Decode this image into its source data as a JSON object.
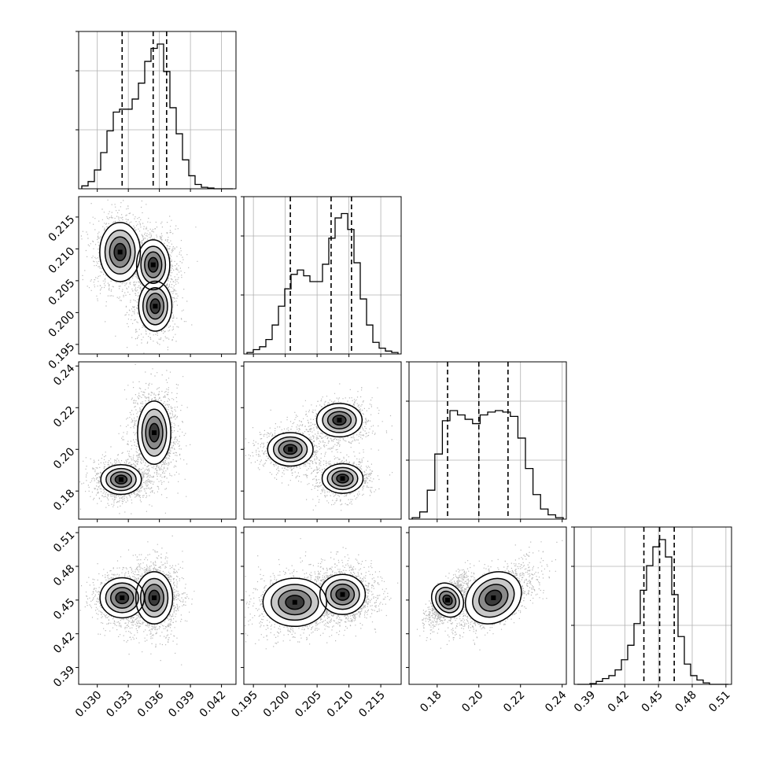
{
  "chart_data": {
    "type": "corner",
    "parameters": [
      {
        "range": [
          0.0282,
          0.0434
        ],
        "ticks": [
          0.03,
          0.033,
          0.036,
          0.039,
          0.042
        ],
        "tick_labels": [
          "0.030",
          "0.033",
          "0.036",
          "0.039",
          "0.042"
        ],
        "quantiles": [
          0.0324,
          0.0354,
          0.0367
        ]
      },
      {
        "range": [
          0.1935,
          0.2182
        ],
        "ticks": [
          0.195,
          0.2,
          0.205,
          0.21,
          0.215
        ],
        "tick_labels": [
          "0.195",
          "0.200",
          "0.205",
          "0.210",
          "0.215"
        ],
        "quantiles": [
          0.2008,
          0.2072,
          0.2104
        ]
      },
      {
        "range": [
          0.1665,
          0.242
        ],
        "ticks": [
          0.18,
          0.2,
          0.22,
          0.24
        ],
        "tick_labels": [
          "0.18",
          "0.20",
          "0.22",
          "0.24"
        ],
        "quantiles": [
          0.185,
          0.2,
          0.214
        ]
      },
      {
        "range": [
          0.375,
          0.515
        ],
        "ticks": [
          0.39,
          0.42,
          0.45,
          0.48,
          0.51
        ],
        "tick_labels": [
          "0.39",
          "0.42",
          "0.45",
          "0.48",
          "0.51"
        ],
        "quantiles": [
          0.437,
          0.451,
          0.464
        ]
      }
    ],
    "histograms": [
      {
        "counts": [
          0.02,
          0.05,
          0.13,
          0.25,
          0.4,
          0.53,
          0.55,
          0.55,
          0.62,
          0.73,
          0.88,
          0.97,
          1.0,
          0.81,
          0.56,
          0.38,
          0.2,
          0.09,
          0.03,
          0.01,
          0.005,
          0.0,
          0.0,
          0.0
        ]
      },
      {
        "counts": [
          0.01,
          0.03,
          0.05,
          0.1,
          0.2,
          0.33,
          0.45,
          0.55,
          0.58,
          0.54,
          0.5,
          0.5,
          0.62,
          0.8,
          0.94,
          0.97,
          0.86,
          0.63,
          0.38,
          0.2,
          0.08,
          0.04,
          0.02,
          0.01
        ]
      },
      {
        "counts": [
          0.01,
          0.05,
          0.2,
          0.45,
          0.68,
          0.75,
          0.72,
          0.69,
          0.66,
          0.72,
          0.74,
          0.75,
          0.74,
          0.71,
          0.56,
          0.35,
          0.17,
          0.07,
          0.03,
          0.01
        ]
      },
      {
        "counts": [
          0.0,
          0.0,
          0.005,
          0.02,
          0.04,
          0.06,
          0.1,
          0.17,
          0.27,
          0.42,
          0.65,
          0.82,
          0.95,
          1.0,
          0.88,
          0.62,
          0.33,
          0.14,
          0.06,
          0.03,
          0.01,
          0.0,
          0.0,
          0.0
        ]
      }
    ],
    "pair_modes": [
      {
        "x": 0,
        "y": 1,
        "modes": [
          {
            "mx": 0.0322,
            "my": 0.2095,
            "sx": 0.0011,
            "sy": 0.0026,
            "w": 0.4
          },
          {
            "mx": 0.0354,
            "my": 0.2075,
            "sx": 0.0009,
            "sy": 0.0022,
            "w": 0.35
          },
          {
            "mx": 0.0356,
            "my": 0.201,
            "sx": 0.0009,
            "sy": 0.0022,
            "w": 0.25
          }
        ]
      },
      {
        "x": 0,
        "y": 2,
        "modes": [
          {
            "mx": 0.0323,
            "my": 0.1855,
            "sx": 0.0011,
            "sy": 0.004,
            "w": 0.4
          },
          {
            "mx": 0.0355,
            "my": 0.208,
            "sx": 0.0009,
            "sy": 0.0085,
            "w": 0.6
          }
        ]
      },
      {
        "x": 1,
        "y": 2,
        "modes": [
          {
            "mx": 0.2008,
            "my": 0.2,
            "sx": 0.002,
            "sy": 0.0045,
            "w": 0.35
          },
          {
            "mx": 0.2085,
            "my": 0.214,
            "sx": 0.002,
            "sy": 0.0045,
            "w": 0.35
          },
          {
            "mx": 0.209,
            "my": 0.186,
            "sx": 0.0018,
            "sy": 0.004,
            "w": 0.3
          }
        ]
      },
      {
        "x": 0,
        "y": 3,
        "modes": [
          {
            "mx": 0.0324,
            "my": 0.452,
            "sx": 0.0012,
            "sy": 0.01,
            "w": 0.4
          },
          {
            "mx": 0.0355,
            "my": 0.452,
            "sx": 0.001,
            "sy": 0.013,
            "w": 0.6
          }
        ]
      },
      {
        "x": 1,
        "y": 3,
        "modes": [
          {
            "mx": 0.2015,
            "my": 0.448,
            "sx": 0.0028,
            "sy": 0.012,
            "w": 0.4
          },
          {
            "mx": 0.209,
            "my": 0.455,
            "sx": 0.002,
            "sy": 0.01,
            "w": 0.6
          }
        ]
      },
      {
        "x": 2,
        "y": 3,
        "modes": [
          {
            "mx": 0.185,
            "my": 0.45,
            "sx": 0.004,
            "sy": 0.009,
            "w": 0.4,
            "rho": 0.7
          },
          {
            "mx": 0.207,
            "my": 0.452,
            "sx": 0.008,
            "sy": 0.012,
            "w": 0.6,
            "rho": 0.6
          }
        ]
      }
    ],
    "grid": true,
    "contour_levels": [
      0.12,
      0.39,
      0.68,
      0.87
    ]
  }
}
